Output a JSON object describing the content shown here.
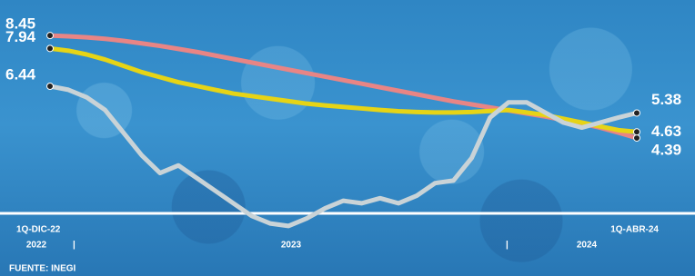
{
  "chart_data": {
    "type": "line",
    "source": "FUENTE: INEGI",
    "categories": [
      "1Q-DIC-22",
      null,
      null,
      null,
      null,
      null,
      null,
      null,
      null,
      null,
      null,
      null,
      null,
      null,
      null,
      null,
      null,
      null,
      null,
      null,
      null,
      null,
      null,
      null,
      null,
      null,
      null,
      null,
      null,
      null,
      null,
      null,
      "1Q-ABR-24"
    ],
    "year_labels": [
      "2022",
      "2023",
      "2024"
    ],
    "ylim": [
      0.5,
      9.5
    ],
    "series": [
      {
        "color": "#e88585",
        "values": [
          8.45,
          8.42,
          8.38,
          8.32,
          8.24,
          8.14,
          8.04,
          7.92,
          7.8,
          7.66,
          7.52,
          7.38,
          7.24,
          7.1,
          6.96,
          6.82,
          6.68,
          6.54,
          6.4,
          6.26,
          6.12,
          5.98,
          5.84,
          5.72,
          5.6,
          5.48,
          5.36,
          5.24,
          5.1,
          4.96,
          4.8,
          4.6,
          4.39
        ]
      },
      {
        "color": "#e6d416",
        "values": [
          7.94,
          7.85,
          7.7,
          7.5,
          7.25,
          7.0,
          6.8,
          6.6,
          6.45,
          6.3,
          6.15,
          6.05,
          5.95,
          5.85,
          5.75,
          5.68,
          5.62,
          5.56,
          5.5,
          5.45,
          5.42,
          5.4,
          5.4,
          5.42,
          5.46,
          5.5,
          5.4,
          5.3,
          5.15,
          5.0,
          4.85,
          4.7,
          4.63
        ]
      },
      {
        "color": "#c9d3d7",
        "values": [
          6.44,
          6.3,
          6.0,
          5.5,
          4.6,
          3.7,
          3.0,
          3.3,
          2.8,
          2.3,
          1.8,
          1.3,
          1.0,
          0.9,
          1.2,
          1.6,
          1.9,
          1.8,
          2.0,
          1.8,
          2.1,
          2.6,
          2.7,
          3.6,
          5.2,
          5.8,
          5.8,
          5.4,
          5.0,
          4.8,
          5.0,
          5.2,
          5.38
        ]
      }
    ]
  }
}
